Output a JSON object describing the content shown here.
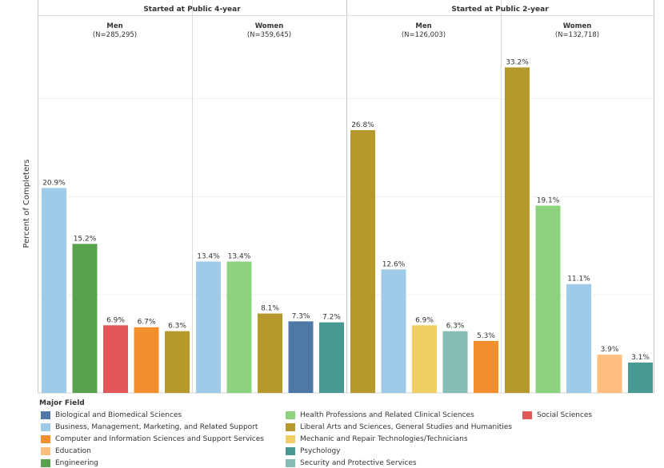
{
  "chart_data": {
    "type": "bar",
    "ylabel": "Percent of Completers",
    "ylim": [
      0,
      36
    ],
    "grid": true,
    "groups": [
      {
        "header": "Started at Public 4-year",
        "panels": [
          {
            "label": "Men",
            "n": "(N=285,295)",
            "bars": [
              {
                "field": "Business, Management, Marketing, and Related Support",
                "value": 20.9,
                "label": "20.9%"
              },
              {
                "field": "Engineering",
                "value": 15.2,
                "label": "15.2%"
              },
              {
                "field": "Social Sciences",
                "value": 6.9,
                "label": "6.9%"
              },
              {
                "field": "Computer and Information Sciences and Support Services",
                "value": 6.7,
                "label": "6.7%"
              },
              {
                "field": "Liberal Arts and Sciences, General Studies and Humanities",
                "value": 6.3,
                "label": "6.3%"
              }
            ]
          },
          {
            "label": "Women",
            "n": "(N=359,645)",
            "bars": [
              {
                "field": "Business, Management, Marketing, and Related Support",
                "value": 13.4,
                "label": "13.4%"
              },
              {
                "field": "Health Professions and Related Clinical Sciences",
                "value": 13.4,
                "label": "13.4%"
              },
              {
                "field": "Liberal Arts and Sciences, General Studies and Humanities",
                "value": 8.1,
                "label": "8.1%"
              },
              {
                "field": "Biological and Biomedical Sciences",
                "value": 7.3,
                "label": "7.3%"
              },
              {
                "field": "Psychology",
                "value": 7.2,
                "label": "7.2%"
              }
            ]
          }
        ]
      },
      {
        "header": "Started at Public 2-year",
        "panels": [
          {
            "label": "Men",
            "n": "(N=126,003)",
            "bars": [
              {
                "field": "Liberal Arts and Sciences, General Studies and Humanities",
                "value": 26.8,
                "label": "26.8%"
              },
              {
                "field": "Business, Management, Marketing, and Related Support",
                "value": 12.6,
                "label": "12.6%"
              },
              {
                "field": "Mechanic and Repair Technologies/Technicians",
                "value": 6.9,
                "label": "6.9%"
              },
              {
                "field": "Security and Protective Services",
                "value": 6.3,
                "label": "6.3%"
              },
              {
                "field": "Computer and Information Sciences and Support Services",
                "value": 5.3,
                "label": "5.3%"
              }
            ]
          },
          {
            "label": "Women",
            "n": "(N=132,718)",
            "bars": [
              {
                "field": "Liberal Arts and Sciences, General Studies and Humanities",
                "value": 33.2,
                "label": "33.2%"
              },
              {
                "field": "Health Professions and Related Clinical Sciences",
                "value": 19.1,
                "label": "19.1%"
              },
              {
                "field": "Business, Management, Marketing, and Related Support",
                "value": 11.1,
                "label": "11.1%"
              },
              {
                "field": "Education",
                "value": 3.9,
                "label": "3.9%"
              },
              {
                "field": "Psychology",
                "value": 3.1,
                "label": "3.1%"
              }
            ]
          }
        ]
      }
    ],
    "legend": {
      "title": "Major Field",
      "entries": [
        {
          "name": "Biological and Biomedical Sciences",
          "color": "#4e79a7"
        },
        {
          "name": "Business, Management, Marketing, and Related Support",
          "color": "#a0cbe8"
        },
        {
          "name": "Computer and Information Sciences and Support Services",
          "color": "#f28e2b"
        },
        {
          "name": "Education",
          "color": "#ffbe7d"
        },
        {
          "name": "Engineering",
          "color": "#59a14f"
        },
        {
          "name": "Health Professions and Related Clinical Sciences",
          "color": "#8cd17d"
        },
        {
          "name": "Liberal Arts and Sciences, General Studies and Humanities",
          "color": "#b6992d"
        },
        {
          "name": "Mechanic and Repair Technologies/Technicians",
          "color": "#f1ce63"
        },
        {
          "name": "Psychology",
          "color": "#499894"
        },
        {
          "name": "Security and Protective Services",
          "color": "#86bcb6"
        },
        {
          "name": "Social Sciences",
          "color": "#e15759"
        }
      ]
    }
  }
}
